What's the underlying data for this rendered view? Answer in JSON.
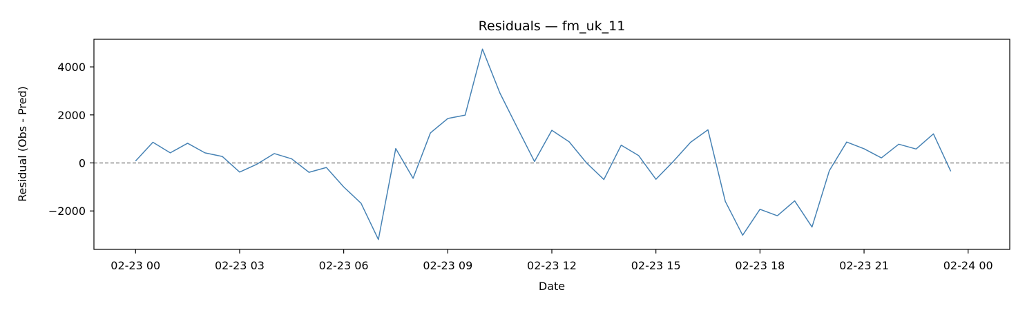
{
  "chart_data": {
    "type": "line",
    "title": "Residuals — fm_uk_11",
    "xlabel": "Date",
    "ylabel": "Residual (Obs - Pred)",
    "x_ticks": [
      "02-23 00",
      "02-23 03",
      "02-23 06",
      "02-23 09",
      "02-23 12",
      "02-23 15",
      "02-23 18",
      "02-23 21",
      "02-24 00"
    ],
    "y_ticks": [
      -2000,
      0,
      2000,
      4000
    ],
    "xlim": [
      "2024-02-22 22:48",
      "2024-02-24 01:12"
    ],
    "ylim": [
      -3600,
      5150
    ],
    "grid": false,
    "reference_line": {
      "y": 0,
      "style": "dashed",
      "color": "#808080"
    },
    "series": [
      {
        "color": "#4682b4",
        "x": [
          "2024-02-23 00:00",
          "2024-02-23 00:30",
          "2024-02-23 01:00",
          "2024-02-23 01:30",
          "2024-02-23 02:00",
          "2024-02-23 02:30",
          "2024-02-23 03:00",
          "2024-02-23 03:30",
          "2024-02-23 04:00",
          "2024-02-23 04:30",
          "2024-02-23 05:00",
          "2024-02-23 05:30",
          "2024-02-23 06:00",
          "2024-02-23 06:30",
          "2024-02-23 07:00",
          "2024-02-23 07:30",
          "2024-02-23 08:00",
          "2024-02-23 08:30",
          "2024-02-23 09:00",
          "2024-02-23 09:30",
          "2024-02-23 10:00",
          "2024-02-23 10:30",
          "2024-02-23 11:00",
          "2024-02-23 11:30",
          "2024-02-23 12:00",
          "2024-02-23 12:30",
          "2024-02-23 13:00",
          "2024-02-23 13:30",
          "2024-02-23 14:00",
          "2024-02-23 14:30",
          "2024-02-23 15:00",
          "2024-02-23 15:30",
          "2024-02-23 16:00",
          "2024-02-23 16:30",
          "2024-02-23 17:00",
          "2024-02-23 17:30",
          "2024-02-23 18:00",
          "2024-02-23 18:30",
          "2024-02-23 19:00",
          "2024-02-23 19:30",
          "2024-02-23 20:00",
          "2024-02-23 20:30",
          "2024-02-23 21:00",
          "2024-02-23 21:30",
          "2024-02-23 22:00",
          "2024-02-23 22:30",
          "2024-02-23 23:00",
          "2024-02-23 23:30"
        ],
        "values": [
          80,
          860,
          420,
          820,
          420,
          270,
          -380,
          -50,
          390,
          170,
          -390,
          -190,
          -1000,
          -1680,
          -3190,
          600,
          -640,
          1250,
          1850,
          1990,
          4740,
          2920,
          1480,
          60,
          1360,
          880,
          0,
          -690,
          740,
          310,
          -680,
          60,
          860,
          1380,
          -1600,
          -3010,
          -1930,
          -2200,
          -1580,
          -2670,
          -320,
          870,
          590,
          210,
          780,
          580,
          1210,
          -350
        ]
      }
    ]
  }
}
